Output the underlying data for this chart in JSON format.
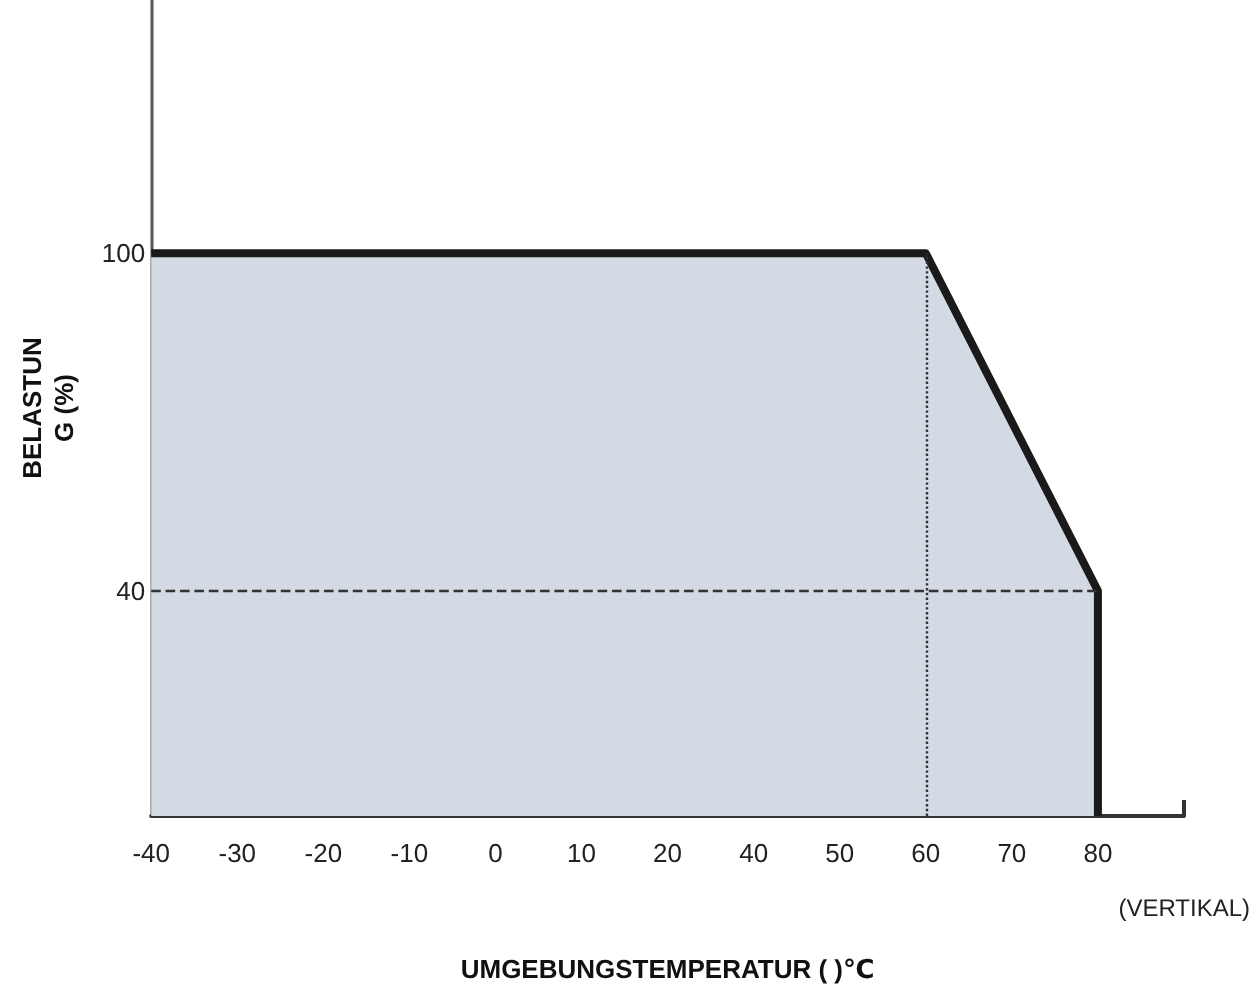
{
  "chart_data": {
    "type": "area",
    "xlabel": "UMGEBUNGSTEMPERATUR ( )℃",
    "ylabel": "BELASTUN\nG (%)",
    "annotations": [
      "(VERTIKAL)"
    ],
    "categories": [
      "-40",
      "-30",
      "-20",
      "-10",
      "0",
      "10",
      "20",
      "40",
      "50",
      "60",
      "70",
      "80",
      null
    ],
    "series": [
      {
        "color": "#d3dae4",
        "x": [
          "-40",
          "60",
          "80",
          "80"
        ],
        "values": [
          100,
          100,
          40,
          0
        ]
      }
    ],
    "ylim": [
      0,
      145
    ],
    "yticks": [
      40,
      100
    ],
    "ref_lines": [
      {
        "axis": "y",
        "value": 40,
        "line_style": "dashed",
        "color": "#333333"
      },
      {
        "axis": "x",
        "value": "60",
        "line_style": "dotted",
        "color": "#333333"
      }
    ],
    "marker": "none",
    "grid": false
  }
}
